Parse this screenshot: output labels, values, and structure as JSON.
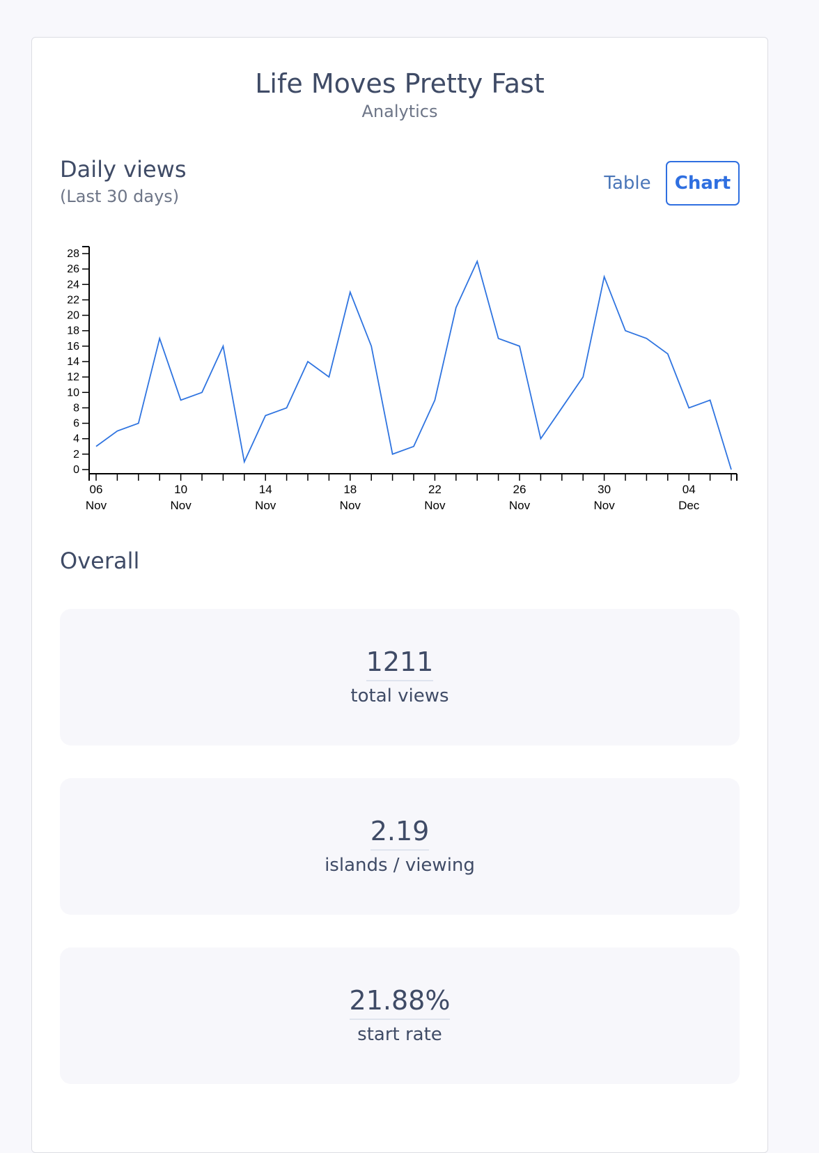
{
  "header": {
    "title": "Life Moves Pretty Fast",
    "subtitle": "Analytics"
  },
  "daily": {
    "title": "Daily views",
    "subtitle": "(Last 30 days)",
    "toggle": {
      "table_label": "Table",
      "chart_label": "Chart",
      "active": "Chart"
    }
  },
  "colors": {
    "line": "#2f74e0",
    "accent": "#2f6fe0"
  },
  "chart_data": {
    "type": "line",
    "title": "",
    "xlabel": "",
    "ylabel": "",
    "ylim": [
      0,
      28
    ],
    "yticks": [
      0,
      2,
      4,
      6,
      8,
      10,
      12,
      14,
      16,
      18,
      20,
      22,
      24,
      26,
      28
    ],
    "grid": false,
    "x": [
      "2023-11-06",
      "2023-11-07",
      "2023-11-08",
      "2023-11-09",
      "2023-11-10",
      "2023-11-11",
      "2023-11-12",
      "2023-11-13",
      "2023-11-14",
      "2023-11-15",
      "2023-11-16",
      "2023-11-17",
      "2023-11-18",
      "2023-11-19",
      "2023-11-20",
      "2023-11-21",
      "2023-11-22",
      "2023-11-23",
      "2023-11-24",
      "2023-11-25",
      "2023-11-26",
      "2023-11-27",
      "2023-11-28",
      "2023-11-29",
      "2023-11-30",
      "2023-12-01",
      "2023-12-02",
      "2023-12-03",
      "2023-12-04",
      "2023-12-05",
      "2023-12-06"
    ],
    "values": [
      3,
      5,
      6,
      17,
      9,
      10,
      16,
      1,
      7,
      8,
      14,
      12,
      23,
      16,
      2,
      3,
      9,
      21,
      27,
      17,
      16,
      4,
      8,
      12,
      25,
      18,
      17,
      15,
      8,
      9,
      0
    ],
    "xtick_labels": [
      [
        "06",
        "Nov"
      ],
      [
        "10",
        "Nov"
      ],
      [
        "14",
        "Nov"
      ],
      [
        "18",
        "Nov"
      ],
      [
        "22",
        "Nov"
      ],
      [
        "26",
        "Nov"
      ],
      [
        "30",
        "Nov"
      ],
      [
        "04",
        "Dec"
      ]
    ]
  },
  "overall": {
    "title": "Overall",
    "stats": [
      {
        "value": "1211",
        "label": "total views"
      },
      {
        "value": "2.19",
        "label": "islands / viewing"
      },
      {
        "value": "21.88%",
        "label": "start rate"
      }
    ]
  }
}
